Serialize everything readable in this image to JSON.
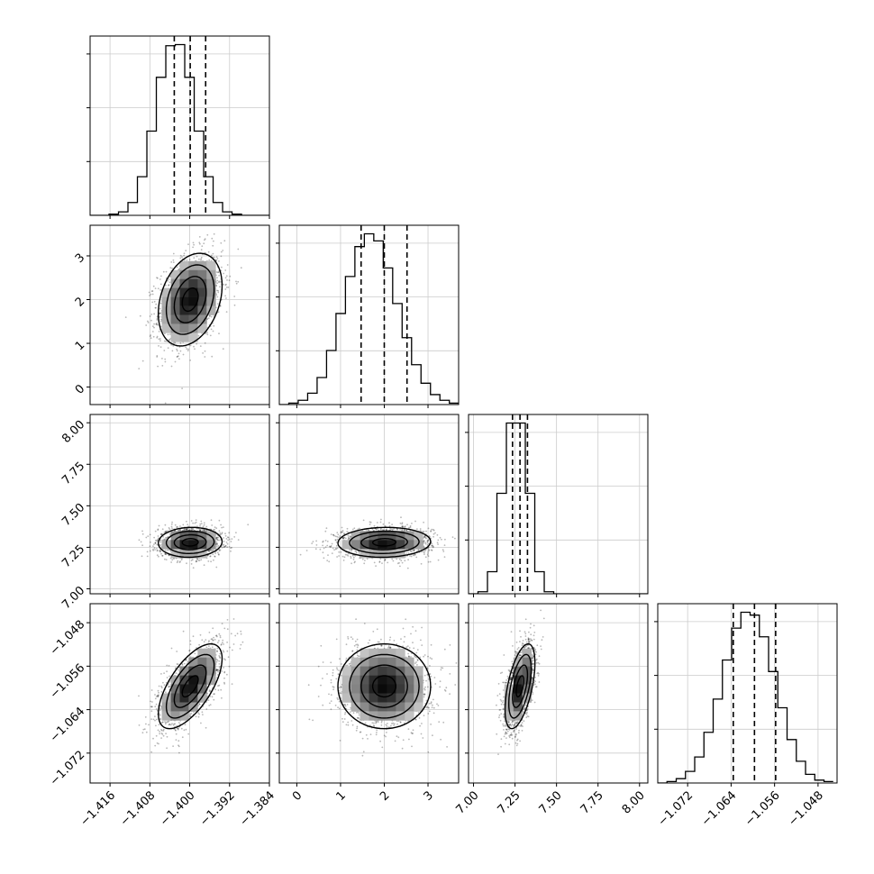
{
  "chart_data": {
    "type": "corner",
    "parameters": [
      {
        "range": [
          -1.42,
          -1.384
        ],
        "ticks": [
          "−1.416",
          "−1.408",
          "−1.400",
          "−1.392",
          "−1.384"
        ],
        "tick_values": [
          -1.416,
          -1.408,
          -1.4,
          -1.392,
          -1.384
        ],
        "quantiles": [
          -1.4031,
          -1.3999,
          -1.3968
        ],
        "mean": -1.3999,
        "sd": 0.0032
      },
      {
        "range": [
          -0.4,
          3.7
        ],
        "ticks": [
          "0",
          "1",
          "2",
          "3"
        ],
        "tick_values": [
          0,
          1,
          2,
          3
        ],
        "quantiles": [
          1.47,
          2.0,
          2.52
        ],
        "mean": 2.0,
        "sd": 0.53
      },
      {
        "range": [
          6.97,
          8.05
        ],
        "ticks": [
          "7.00",
          "7.25",
          "7.50",
          "7.75",
          "8.00"
        ],
        "tick_values": [
          7.0,
          7.25,
          7.5,
          7.75,
          8.0
        ],
        "quantiles": [
          7.235,
          7.28,
          7.325
        ],
        "mean": 7.28,
        "sd": 0.045
      },
      {
        "range": [
          -1.0775,
          -1.0445
        ],
        "ticks": [
          "−1.072",
          "−1.064",
          "−1.056",
          "−1.048"
        ],
        "tick_values": [
          -1.072,
          -1.064,
          -1.056,
          -1.048
        ],
        "quantiles": [
          -1.0636,
          -1.0597,
          -1.0558
        ],
        "mean": -1.0597,
        "sd": 0.0039
      }
    ],
    "correlations": {
      "1-0": 0.3,
      "2-0": 0.05,
      "2-1": 0.05,
      "3-0": 0.65,
      "3-1": 0.0,
      "3-2": 0.55
    },
    "histograms": [
      {
        "edges": [
          -1.42,
          -1.4181,
          -1.4162,
          -1.4143,
          -1.4124,
          -1.4105,
          -1.4086,
          -1.4067,
          -1.4048,
          -1.4029,
          -1.401,
          -1.3991,
          -1.3972,
          -1.3953,
          -1.3934,
          -1.3915,
          -1.3896,
          -1.3877,
          -1.3858,
          -1.3839
        ],
        "counts": [
          0,
          0,
          1,
          3,
          11,
          33,
          72,
          118,
          145,
          146,
          118,
          72,
          33,
          11,
          3,
          1,
          0,
          0,
          0
        ]
      },
      {
        "edges": [
          -0.4,
          -0.184,
          0.032,
          0.248,
          0.464,
          0.68,
          0.896,
          1.112,
          1.328,
          1.544,
          1.76,
          1.976,
          2.192,
          2.408,
          2.624,
          2.84,
          3.056,
          3.272,
          3.488,
          3.704
        ],
        "counts": [
          0,
          1,
          3,
          8,
          19,
          38,
          64,
          90,
          111,
          120,
          115,
          96,
          71,
          47,
          28,
          15,
          7,
          3,
          1
        ]
      },
      {
        "edges": [
          6.97,
          7.027,
          7.084,
          7.141,
          7.198,
          7.255,
          7.312,
          7.369,
          7.426,
          7.483,
          7.54,
          7.597,
          7.654,
          7.711,
          7.768,
          7.825,
          7.882,
          7.939,
          7.996,
          8.053
        ],
        "counts": [
          0,
          2,
          22,
          100,
          170,
          170,
          100,
          22,
          2,
          0,
          0,
          0,
          0,
          0,
          0,
          0,
          0,
          0,
          0
        ]
      },
      {
        "edges": [
          -1.0775,
          -1.0758,
          -1.0741,
          -1.0724,
          -1.0707,
          -1.069,
          -1.0673,
          -1.0656,
          -1.0639,
          -1.0622,
          -1.0605,
          -1.0588,
          -1.0571,
          -1.0554,
          -1.0537,
          -1.052,
          -1.0503,
          -1.0486,
          -1.0469,
          -1.0452
        ],
        "counts": [
          0,
          1,
          3,
          8,
          18,
          35,
          58,
          85,
          107,
          118,
          116,
          101,
          77,
          52,
          30,
          15,
          6,
          2,
          1
        ]
      }
    ],
    "grid": true,
    "legend": "none"
  }
}
